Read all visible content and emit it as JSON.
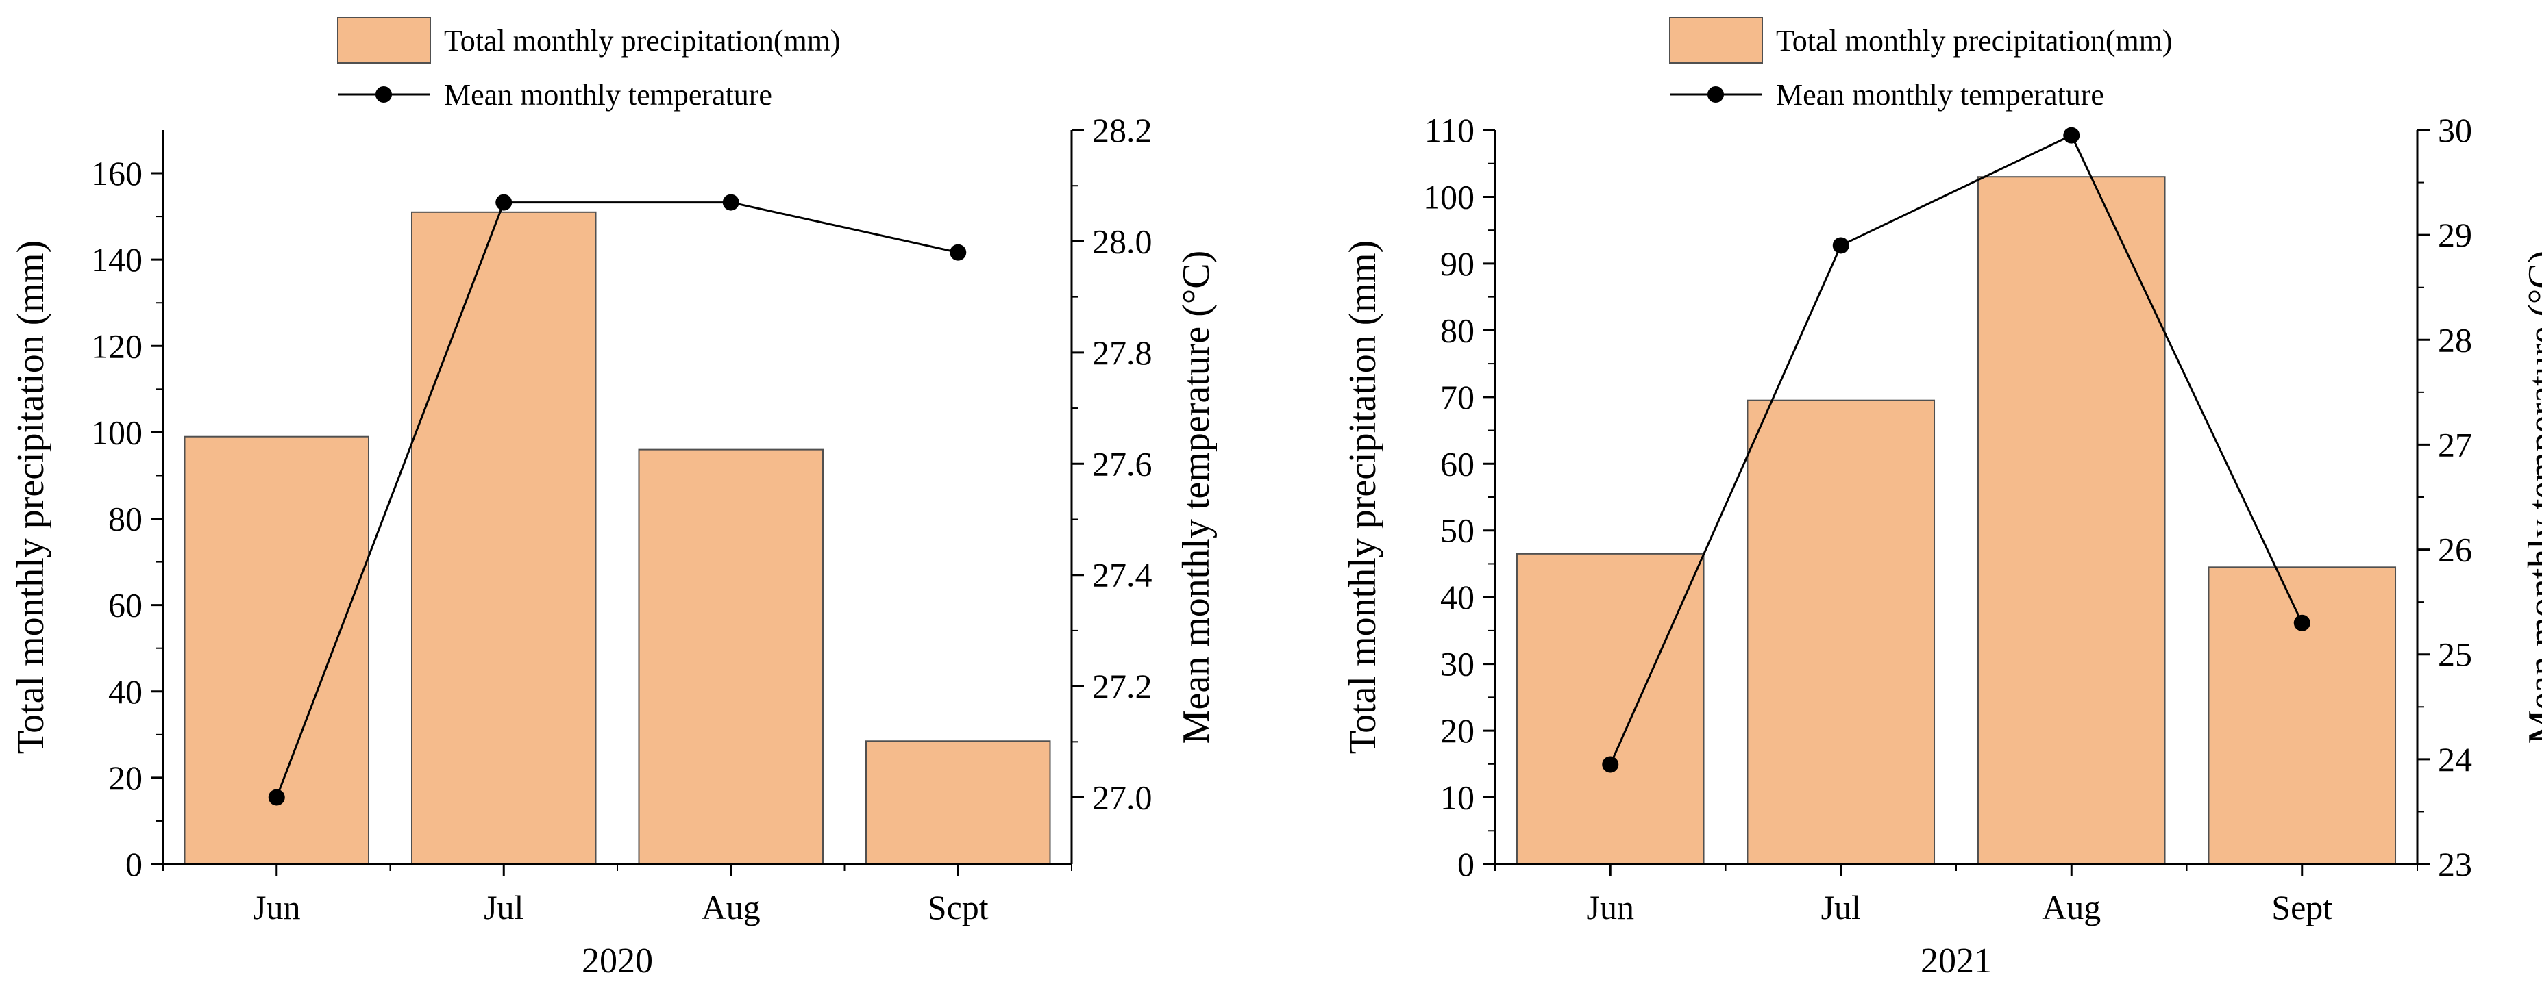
{
  "colors": {
    "bar_fill": "#f5bb8c",
    "bar_stroke": "#505050",
    "line": "#000000",
    "marker": "#000000"
  },
  "chart_data": [
    {
      "type": "bar+line",
      "subtitle": "2020",
      "categories": [
        "Jun",
        "Jul",
        "Aug",
        "Scpt"
      ],
      "precipitation": {
        "name": "Total monthly precipitation(mm)",
        "values": [
          99,
          151,
          96,
          28.5
        ]
      },
      "temperature": {
        "name": "Mean monthly temperature",
        "values": [
          27.0,
          28.07,
          28.07,
          27.98
        ]
      },
      "ylabel_left": "Total monthly precipitation (mm)",
      "ylabel_right": "Mean monthly temperature (°C)",
      "ylim_left": [
        0,
        170
      ],
      "yticks_left": [
        "0",
        "20",
        "40",
        "60",
        "80",
        "100",
        "120",
        "140",
        "160"
      ],
      "ylim_right": [
        26.88,
        28.2
      ],
      "yticks_right": [
        "27.0",
        "27.2",
        "27.4",
        "27.6",
        "27.8",
        "28.0",
        "28.2"
      ],
      "legend_position": "top"
    },
    {
      "type": "bar+line",
      "subtitle": "2021",
      "categories": [
        "Jun",
        "Jul",
        "Aug",
        "Sept"
      ],
      "precipitation": {
        "name": "Total monthly precipitation(mm)",
        "values": [
          46.5,
          69.5,
          103,
          44.5
        ]
      },
      "temperature": {
        "name": "Mean monthly temperature",
        "values": [
          23.95,
          28.9,
          29.95,
          25.3
        ]
      },
      "ylabel_left": "Total monthly precipitation (mm)",
      "ylabel_right": "Mean monthly temperature (°C)",
      "ylim_left": [
        0,
        110
      ],
      "yticks_left": [
        "0",
        "10",
        "20",
        "30",
        "40",
        "50",
        "60",
        "70",
        "80",
        "90",
        "100",
        "110"
      ],
      "ylim_right": [
        23,
        30
      ],
      "yticks_right": [
        "23",
        "24",
        "25",
        "26",
        "27",
        "28",
        "29",
        "30"
      ],
      "legend_position": "top"
    }
  ]
}
